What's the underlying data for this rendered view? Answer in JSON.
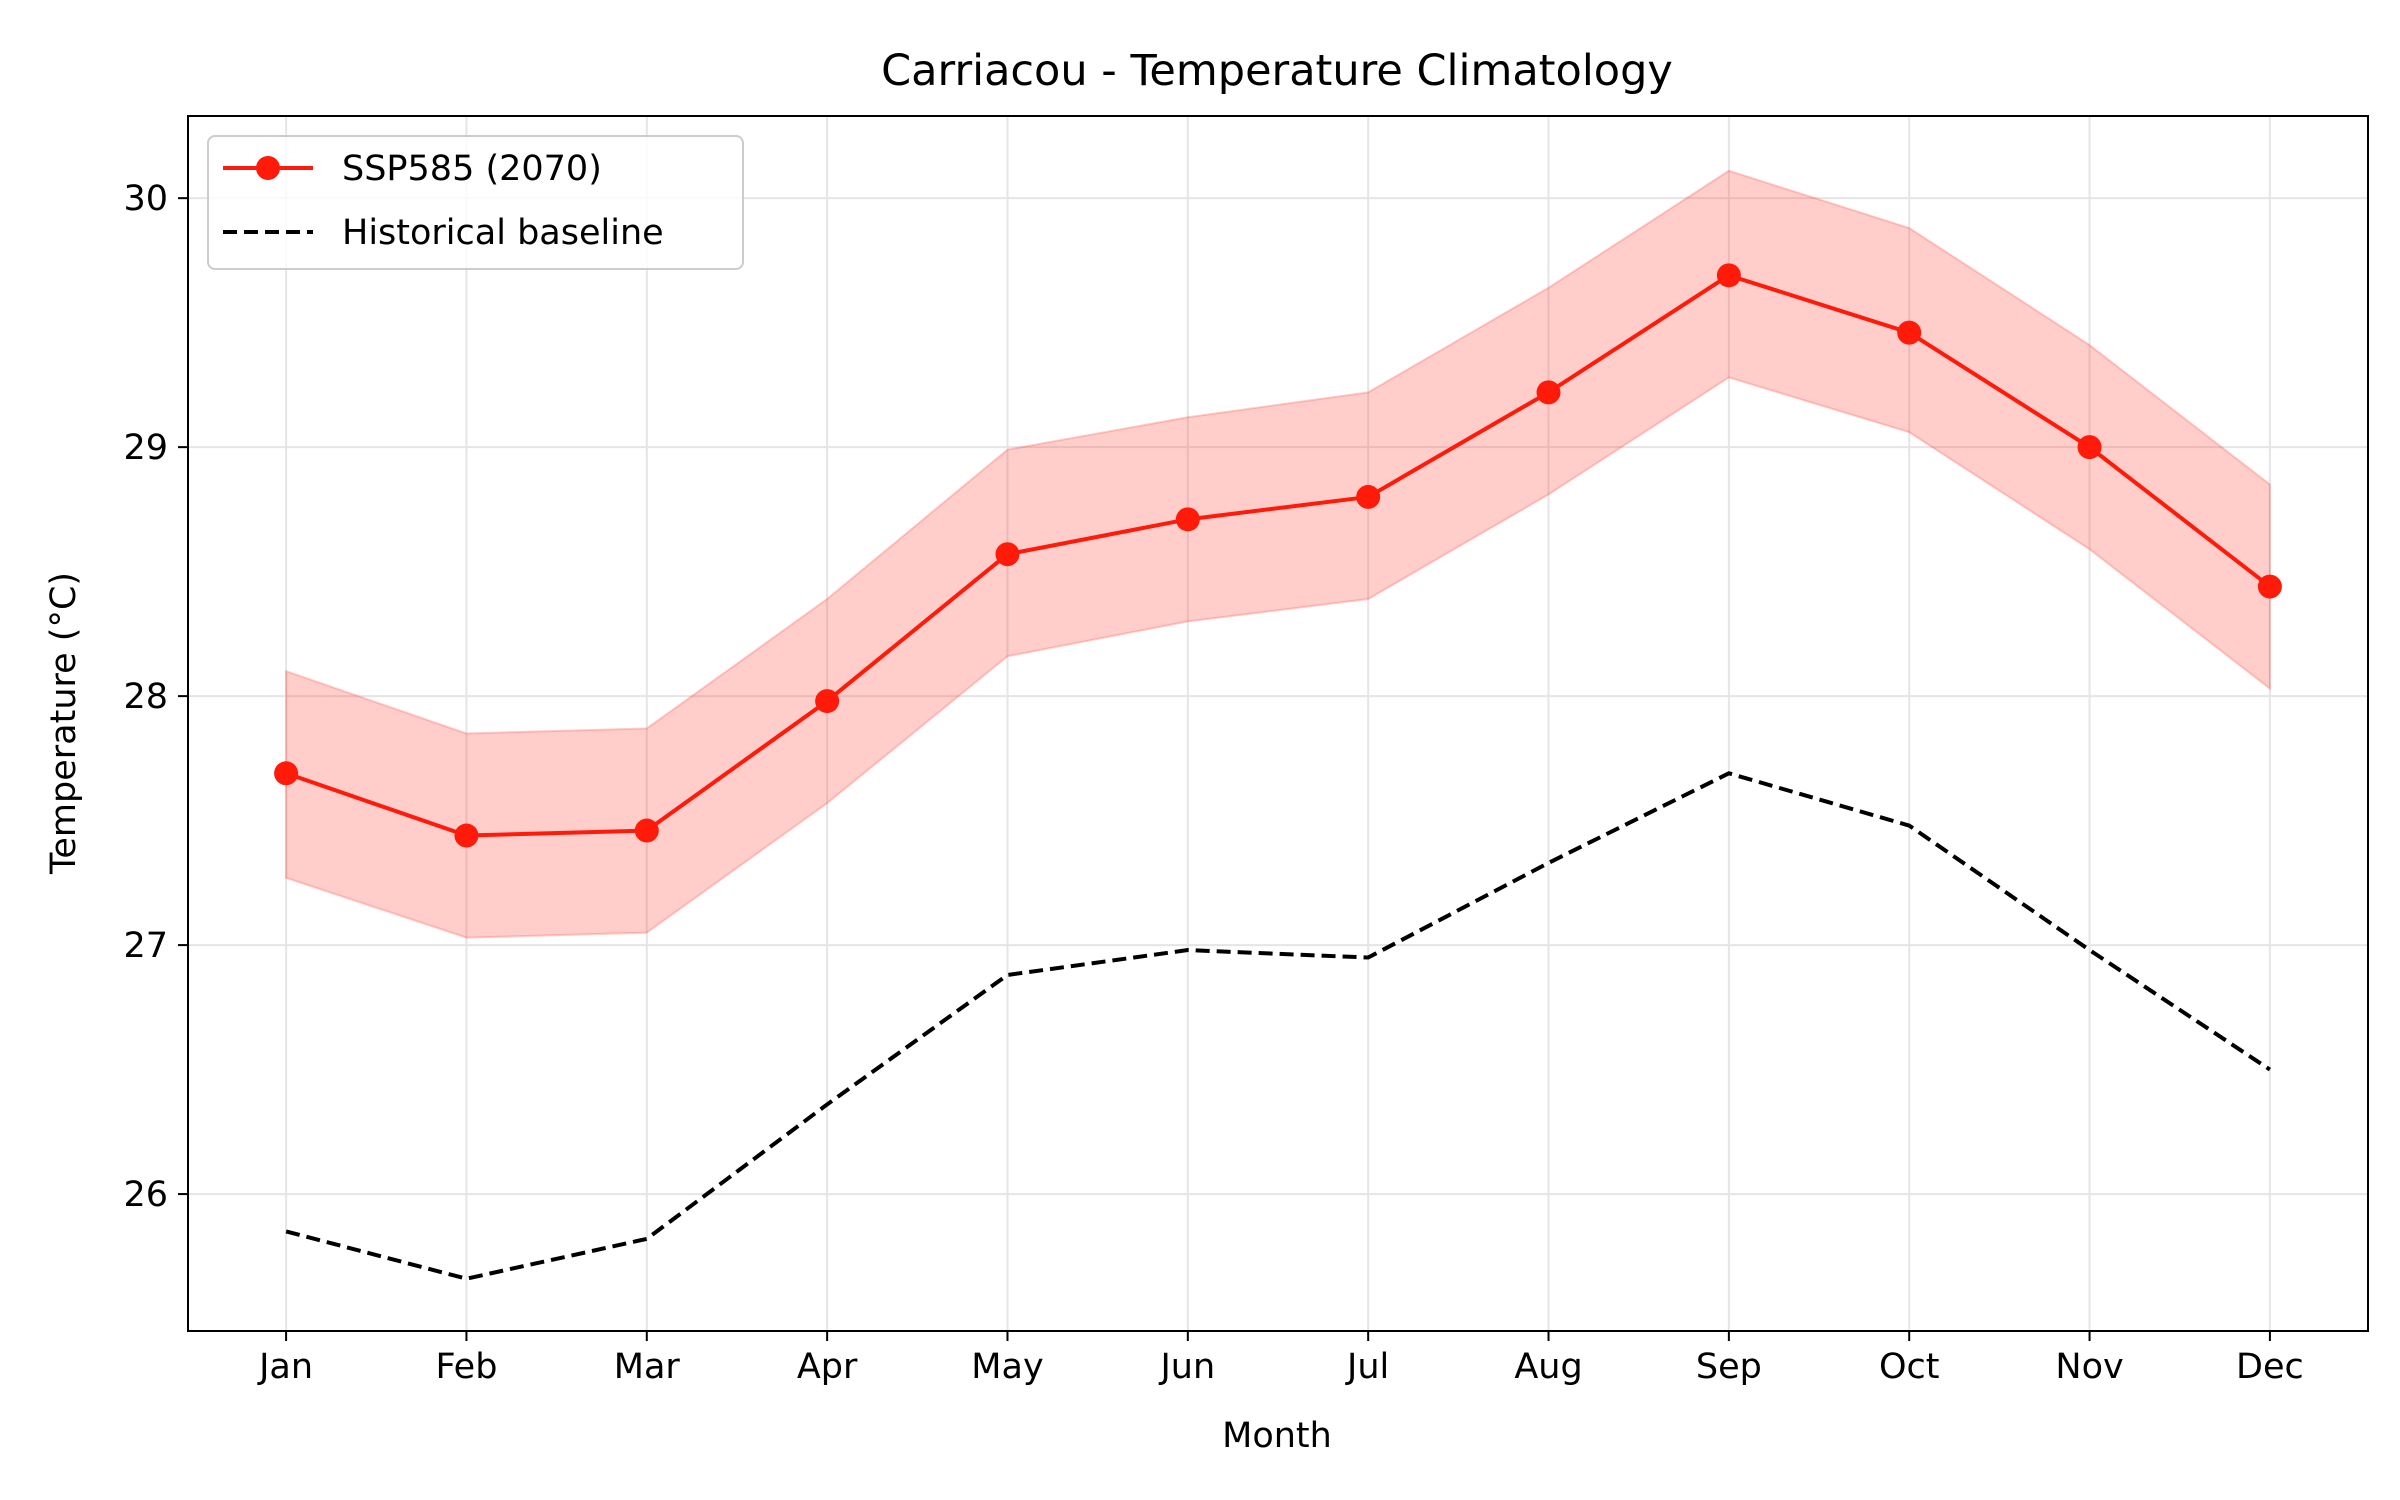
{
  "chart_data": {
    "type": "line",
    "title": "Carriacou - Temperature Climatology",
    "xlabel": "Month",
    "ylabel": "Temperature (°C)",
    "categories": [
      "Jan",
      "Feb",
      "Mar",
      "Apr",
      "May",
      "Jun",
      "Jul",
      "Aug",
      "Sep",
      "Oct",
      "Nov",
      "Dec"
    ],
    "ylim": [
      25.45,
      30.33
    ],
    "yticks": [
      26,
      27,
      28,
      29,
      30
    ],
    "grid": true,
    "legend_position": "top-left",
    "series": [
      {
        "name": "SSP585 (2070)",
        "style": "solid line with circle markers",
        "color": "#ff1a0a",
        "values": [
          27.69,
          27.44,
          27.46,
          27.98,
          28.57,
          28.71,
          28.8,
          29.22,
          29.69,
          29.46,
          29.0,
          28.44
        ],
        "band_upper": [
          28.1,
          27.85,
          27.87,
          28.39,
          28.99,
          29.12,
          29.22,
          29.64,
          30.11,
          29.88,
          29.41,
          28.85
        ],
        "band_lower": [
          27.27,
          27.03,
          27.05,
          27.57,
          28.16,
          28.3,
          28.39,
          28.81,
          29.28,
          29.06,
          28.59,
          28.03
        ],
        "band_color": "#ff3b30"
      },
      {
        "name": "Historical baseline",
        "style": "dashed line",
        "color": "#000000",
        "values": [
          25.85,
          25.66,
          25.82,
          26.36,
          26.88,
          26.98,
          26.95,
          27.33,
          27.69,
          27.48,
          26.98,
          26.5
        ]
      }
    ]
  }
}
